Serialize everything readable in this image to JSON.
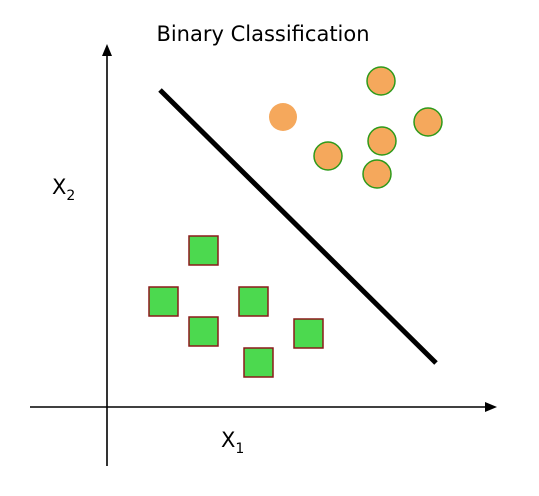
{
  "title": "Binary Classification",
  "axes": {
    "x_label_base": "X",
    "x_label_sub": "1",
    "y_label_base": "X",
    "y_label_sub": "2"
  },
  "colors": {
    "axis": "#000000",
    "boundary": "#000000",
    "circle_fill": "#f5a85c",
    "circle_stroke": "#2e9a1a",
    "square_fill": "#4cd94f",
    "square_stroke": "#8b1a1a"
  },
  "shapes": {
    "class_a": "circle",
    "class_b": "square"
  }
}
